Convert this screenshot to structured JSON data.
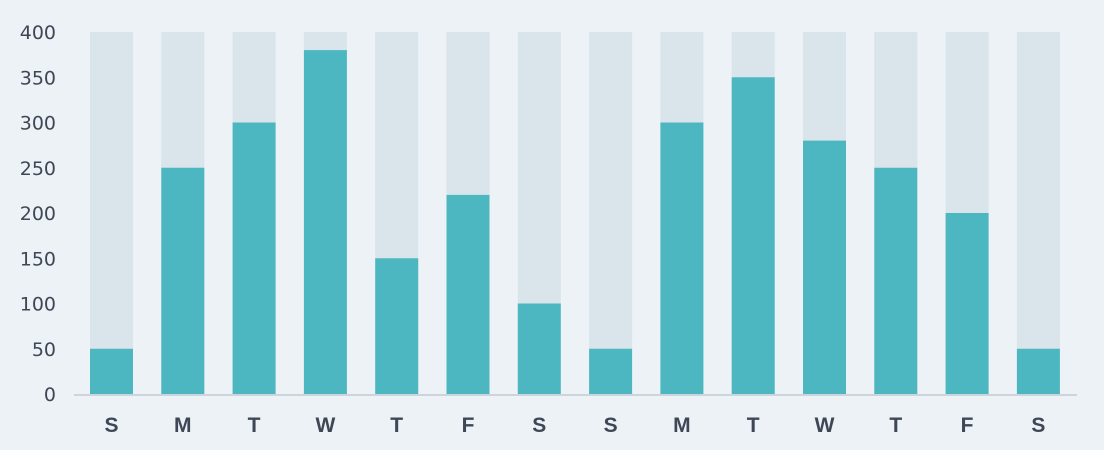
{
  "chart_data": {
    "type": "bar",
    "categories": [
      "S",
      "M",
      "T",
      "W",
      "T",
      "F",
      "S",
      "S",
      "M",
      "T",
      "W",
      "T",
      "F",
      "S"
    ],
    "values": [
      50,
      250,
      300,
      380,
      150,
      220,
      100,
      50,
      300,
      350,
      280,
      250,
      200,
      50
    ],
    "max_value": 400,
    "title": "",
    "xlabel": "",
    "ylabel": "",
    "ylim": [
      0,
      400
    ],
    "yticks": [
      0,
      50,
      100,
      150,
      200,
      250,
      300,
      350,
      400
    ],
    "grid": false,
    "legend": "none",
    "colors": {
      "bar": "#4db7c1",
      "track": "#d9e4eb",
      "axis": "#cdd4db",
      "text": "#3f4756",
      "background": "#edf2f6"
    }
  }
}
